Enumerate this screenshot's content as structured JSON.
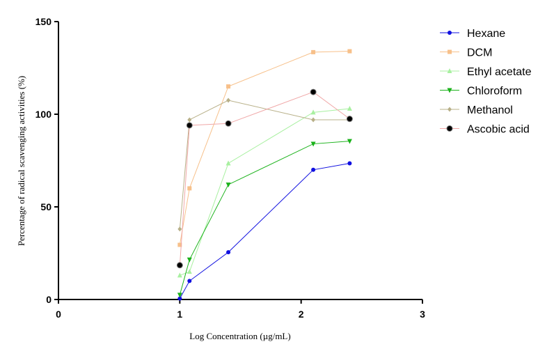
{
  "chart_data": {
    "type": "line",
    "title": "",
    "xlabel": "Log Concentration (µg/mL)",
    "ylabel": "Percentage of radical scavenging activities (%)",
    "xlim": [
      0,
      3
    ],
    "ylim": [
      0,
      150
    ],
    "xticks": [
      "0",
      "1",
      "2",
      "3"
    ],
    "yticks": [
      "0",
      "50",
      "100",
      "150"
    ],
    "grid": false,
    "legend_position": "top-right",
    "x": [
      1.0,
      1.08,
      1.4,
      2.1,
      2.4
    ],
    "series": [
      {
        "name": "Hexane",
        "color": "#1010e0",
        "marker": "circle",
        "values": [
          0.5,
          10,
          25.5,
          70,
          73.5
        ]
      },
      {
        "name": "DCM",
        "color": "#f7c08a",
        "marker": "square",
        "values": [
          29.5,
          60,
          115,
          133.5,
          134
        ]
      },
      {
        "name": "Ethyl acetate",
        "color": "#a8f0a0",
        "marker": "triangle-up",
        "values": [
          13,
          15,
          73.5,
          101,
          103
        ]
      },
      {
        "name": "Chloroform",
        "color": "#1ab21a",
        "marker": "triangle-down",
        "values": [
          2.5,
          21.5,
          62,
          84,
          85.5
        ]
      },
      {
        "name": "Methanol",
        "color": "#b8b088",
        "marker": "diamond",
        "values": [
          38,
          97,
          107.5,
          97,
          97
        ]
      },
      {
        "name": "Ascobic acid",
        "color": "#f0a8a8",
        "marker": "big-circle",
        "values": [
          18.5,
          94,
          95,
          112,
          97.5
        ]
      }
    ]
  }
}
